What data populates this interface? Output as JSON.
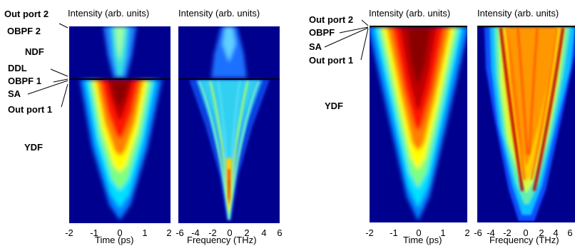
{
  "figure": {
    "left": {
      "stage_labels": {
        "out_port_2": "Out port 2",
        "obpf_2": "OBPF 2",
        "ndf": "NDF",
        "ddl": "DDL",
        "obpf_1": "OBPF 1",
        "sa": "SA",
        "out_port_1": "Out port 1",
        "ydf": "YDF"
      },
      "time_panel": {
        "title": "Intensity (arb. units)",
        "xlabel": "Time (ps)",
        "ticks": [
          "-2",
          "-1",
          "0",
          "1",
          "2"
        ]
      },
      "frequency_panel": {
        "title": "Intensity (arb. units)",
        "xlabel": "Frequency (THz)",
        "ticks": [
          "-6",
          "-4",
          "-2",
          "0",
          "2",
          "4",
          "6"
        ]
      }
    },
    "right": {
      "stage_labels": {
        "out_port_2": "Out port 2",
        "obpf": "OBPF",
        "sa": "SA",
        "out_port_1": "Out port 1",
        "ydf": "YDF"
      },
      "time_panel": {
        "title": "Intensity (arb. units)",
        "xlabel": "Time (ps)",
        "ticks": [
          "-2",
          "-1",
          "0",
          "1",
          "2"
        ]
      },
      "frequency_panel": {
        "title": "Intensity (arb. units)",
        "xlabel": "Frequency (THz)",
        "ticks": [
          "-6",
          "-4",
          "-2",
          "0",
          "2",
          "4",
          "6"
        ]
      }
    },
    "colormap": "jet",
    "colors": {
      "background": "#00008f",
      "peak": "#7f0000"
    }
  }
}
